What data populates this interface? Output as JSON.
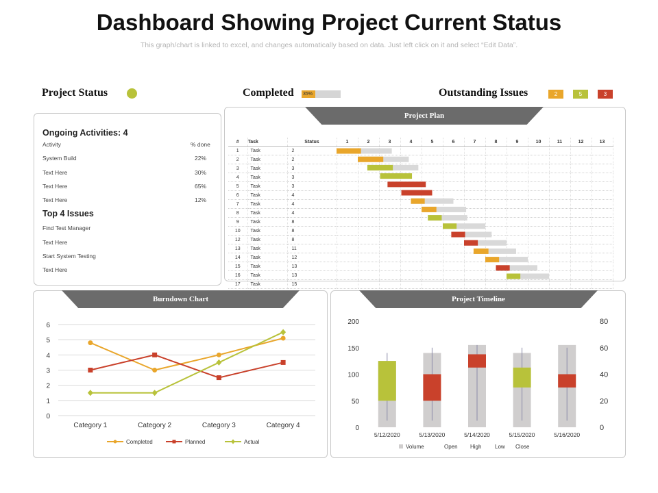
{
  "header": {
    "title": "Dashboard Showing Project Current Status",
    "subtitle": "This graph/chart is linked to excel, and changes automatically based on data. Just left click on it and select “Edit Data”."
  },
  "status_bar": {
    "project_status_label": "Project Status",
    "project_status_color": "#b8c23a",
    "completed_label": "Completed",
    "completed_percent_text": "35%",
    "completed_fraction": 0.35,
    "outstanding_label": "Outstanding Issues",
    "issues": [
      {
        "count": "2",
        "color": "#e9a62b"
      },
      {
        "count": "5",
        "color": "#b8c23a"
      },
      {
        "count": "3",
        "color": "#c9412b"
      }
    ]
  },
  "activities": {
    "heading": "Ongoing Activities:  4",
    "col_activity": "Activity",
    "col_done": "% done",
    "rows": [
      {
        "name": "System Build",
        "pct": "22%"
      },
      {
        "name": "Text Here",
        "pct": "30%"
      },
      {
        "name": "Text Here",
        "pct": "65%"
      },
      {
        "name": "Text Here",
        "pct": "12%"
      }
    ],
    "issues_heading": "Top 4 Issues",
    "issues": [
      "Find Test Manager",
      "Text Here",
      "Start System Testing",
      "Text Here"
    ]
  },
  "project_plan": {
    "tab_label": "Project Plan",
    "headers": [
      "#",
      "Task",
      "Status",
      "1",
      "2",
      "3",
      "4",
      "5",
      "6",
      "7",
      "8",
      "9",
      "10",
      "11",
      "12",
      "13"
    ],
    "colors": {
      "orange": "#e9a62b",
      "green": "#b8c23a",
      "red": "#c9412b",
      "grey": "#d9d9d9"
    },
    "rows": [
      {
        "num": "1",
        "task": "Task",
        "status": "2",
        "start": 0.0,
        "done": 1.15,
        "total": 2.6,
        "color": "orange"
      },
      {
        "num": "2",
        "task": "Task",
        "status": "2",
        "start": 1.0,
        "done": 1.2,
        "total": 2.4,
        "color": "orange"
      },
      {
        "num": "3",
        "task": "Task",
        "status": "3",
        "start": 1.45,
        "done": 1.2,
        "total": 2.4,
        "color": "green"
      },
      {
        "num": "4",
        "task": "Task",
        "status": "3",
        "start": 2.05,
        "done": 1.5,
        "total": 1.5,
        "color": "green"
      },
      {
        "num": "5",
        "task": "Task",
        "status": "3",
        "start": 2.4,
        "done": 1.8,
        "total": 1.8,
        "color": "red"
      },
      {
        "num": "6",
        "task": "Task",
        "status": "4",
        "start": 3.05,
        "done": 1.45,
        "total": 1.45,
        "color": "red"
      },
      {
        "num": "7",
        "task": "Task",
        "status": "4",
        "start": 3.5,
        "done": 0.65,
        "total": 2.0,
        "color": "orange"
      },
      {
        "num": "8",
        "task": "Task",
        "status": "4",
        "start": 4.0,
        "done": 0.7,
        "total": 2.1,
        "color": "orange"
      },
      {
        "num": "9",
        "task": "Task",
        "status": "8",
        "start": 4.3,
        "done": 0.65,
        "total": 1.85,
        "color": "green"
      },
      {
        "num": "10",
        "task": "Task",
        "status": "8",
        "start": 5.0,
        "done": 0.65,
        "total": 2.0,
        "color": "green"
      },
      {
        "num": "12",
        "task": "Task",
        "status": "8",
        "start": 5.4,
        "done": 0.65,
        "total": 1.9,
        "color": "red"
      },
      {
        "num": "13",
        "task": "Task",
        "status": "11",
        "start": 6.0,
        "done": 0.65,
        "total": 2.0,
        "color": "red"
      },
      {
        "num": "14",
        "task": "Task",
        "status": "12",
        "start": 6.45,
        "done": 0.7,
        "total": 2.0,
        "color": "orange"
      },
      {
        "num": "15",
        "task": "Task",
        "status": "13",
        "start": 7.0,
        "done": 0.65,
        "total": 2.0,
        "color": "orange"
      },
      {
        "num": "16",
        "task": "Task",
        "status": "13",
        "start": 7.5,
        "done": 0.65,
        "total": 1.95,
        "color": "red"
      },
      {
        "num": "17",
        "task": "Task",
        "status": "15",
        "start": 8.0,
        "done": 0.65,
        "total": 2.0,
        "color": "green"
      }
    ]
  },
  "burndown": {
    "tab_label": "Burndown Chart"
  },
  "timeline": {
    "tab_label": "Project Timeline"
  },
  "chart_data": [
    {
      "type": "line",
      "categories": [
        "Category 1",
        "Category 2",
        "Category 3",
        "Category 4"
      ],
      "series": [
        {
          "name": "Completed",
          "values": [
            4.8,
            3.0,
            4.0,
            5.1
          ],
          "color": "#e9a62b",
          "marker": "circle"
        },
        {
          "name": "Planned",
          "values": [
            3.0,
            4.0,
            2.5,
            3.5
          ],
          "color": "#c9412b",
          "marker": "square"
        },
        {
          "name": "Actual",
          "values": [
            1.5,
            1.5,
            3.5,
            5.5
          ],
          "color": "#b8c23a",
          "marker": "diamond"
        }
      ],
      "yticks": [
        "0",
        "1",
        "2",
        "3",
        "4",
        "5",
        "6"
      ],
      "ylim": [
        0,
        6
      ],
      "grid": true,
      "legend_position": "bottom"
    },
    {
      "type": "bar",
      "categories": [
        "5/12/2020",
        "5/13/2020",
        "5/14/2020",
        "5/15/2020",
        "5/16/2020"
      ],
      "volume": [
        125,
        140,
        155,
        140,
        155
      ],
      "open": [
        20,
        20,
        45,
        30,
        30
      ],
      "high": [
        56,
        60,
        62,
        60,
        60
      ],
      "low": [
        5,
        5,
        5,
        5,
        5
      ],
      "close": [
        50,
        40,
        55,
        45,
        40
      ],
      "candle_colors": [
        "#b8c23a",
        "#c9412b",
        "#c9412b",
        "#b8c23a",
        "#c9412b"
      ],
      "volume_color": "#d0cece",
      "y_left_ticks": [
        "0",
        "50",
        "100",
        "150",
        "200"
      ],
      "y_left_lim": [
        0,
        200
      ],
      "y_right_ticks": [
        "0",
        "20",
        "40",
        "60",
        "80"
      ],
      "y_right_lim": [
        0,
        80
      ],
      "legend": [
        "Volume",
        "Open",
        "High",
        "Low",
        "Close"
      ],
      "legend_position": "bottom"
    }
  ]
}
